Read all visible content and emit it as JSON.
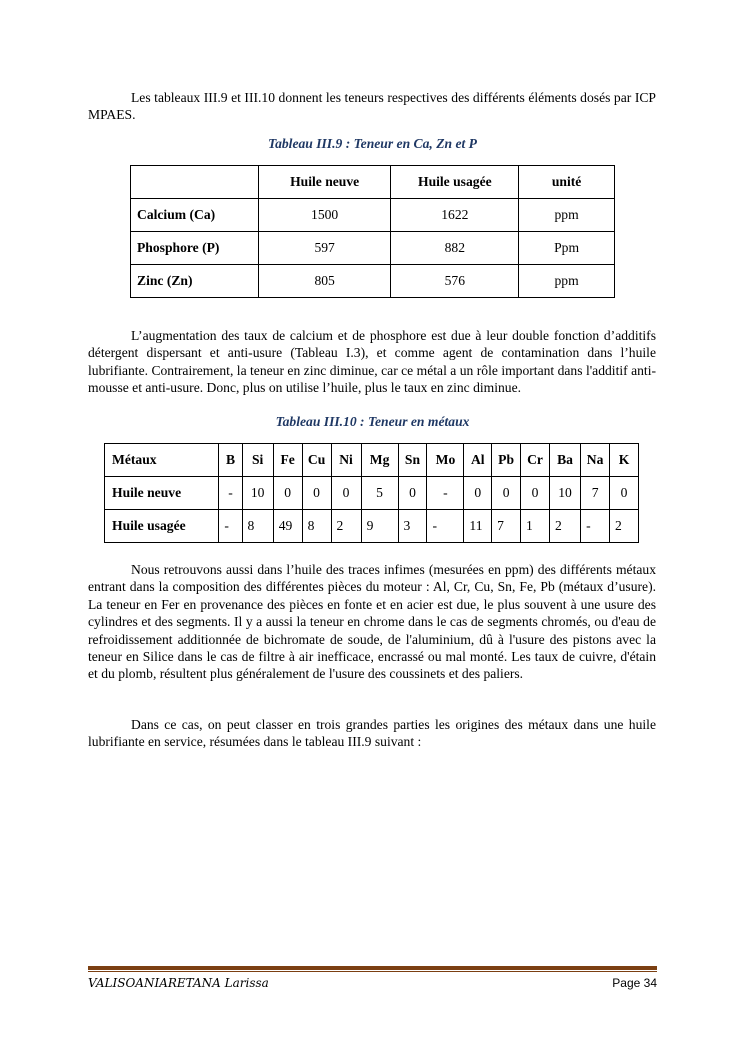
{
  "paragraphs": [
    "Les tableaux III.9 et III.10  donnent les teneurs respectives des différents éléments dosés par ICP MPAES.",
    "L’augmentation des taux de calcium et de phosphore est due à leur double fonction d’additifs détergent dispersant et anti-usure (Tableau I.3), et comme agent de contamination dans l’huile lubrifiante. Contrairement, la teneur en zinc diminue, car ce métal a un rôle important dans l'additif anti-mousse et anti-usure. Donc, plus on utilise l’huile, plus le taux en zinc diminue.",
    "Nous retrouvons aussi dans l’huile des traces infimes (mesurées en ppm) des différents métaux entrant dans la composition des différentes pièces du moteur : Al, Cr, Cu, Sn, Fe, Pb (métaux d’usure). La teneur en Fer en provenance des pièces en fonte et en acier est due, le plus souvent à une usure des cylindres et des segments. Il y a aussi la teneur en chrome dans le cas de segments chromés, ou d'eau de refroidissement additionnée de bichromate de soude, de l'aluminium, dû à l'usure des pistons avec la teneur en Silice dans le cas de filtre à air inefficace, encrassé ou mal monté. Les taux de cuivre, d'étain et du plomb, résultent plus généralement de l'usure des coussinets et des paliers.",
    "Dans ce cas, on peut classer en trois grandes parties les origines des métaux dans une huile lubrifiante en service, résumées dans le tableau III.9 suivant :"
  ],
  "table1": {
    "caption": "Tableau III.9 : Teneur en Ca, Zn et P",
    "header": [
      "",
      "Huile neuve",
      "Huile usagée",
      "unité"
    ],
    "rows": [
      [
        "Calcium (Ca)",
        "1500",
        "1622",
        "ppm"
      ],
      [
        "Phosphore (P)",
        "597",
        "882",
        "Ppm"
      ],
      [
        "Zinc (Zn)",
        "805",
        "576",
        "ppm"
      ]
    ]
  },
  "table2": {
    "caption": "Tableau III.10 : Teneur en métaux",
    "header": [
      "Métaux",
      "B",
      "Si",
      "Fe",
      "Cu",
      "Ni",
      "Mg",
      "Sn",
      "Mo",
      "Al",
      "Pb",
      "Cr",
      "Ba",
      "Na",
      "K"
    ],
    "rows": [
      [
        "Huile neuve",
        "-",
        "10",
        "0",
        "0",
        "0",
        "5",
        "0",
        "-",
        "0",
        "0",
        "0",
        "10",
        "7",
        "0"
      ],
      [
        "Huile usagée",
        "-",
        "8",
        "49",
        "8",
        "2",
        "9",
        "3",
        "-",
        "11",
        "7",
        "1",
        "2",
        "-",
        "2"
      ]
    ]
  },
  "footer": {
    "author": "VALISOANIARETANA Larissa",
    "page": "Page 34",
    "rule_color": "#7b3f12"
  }
}
